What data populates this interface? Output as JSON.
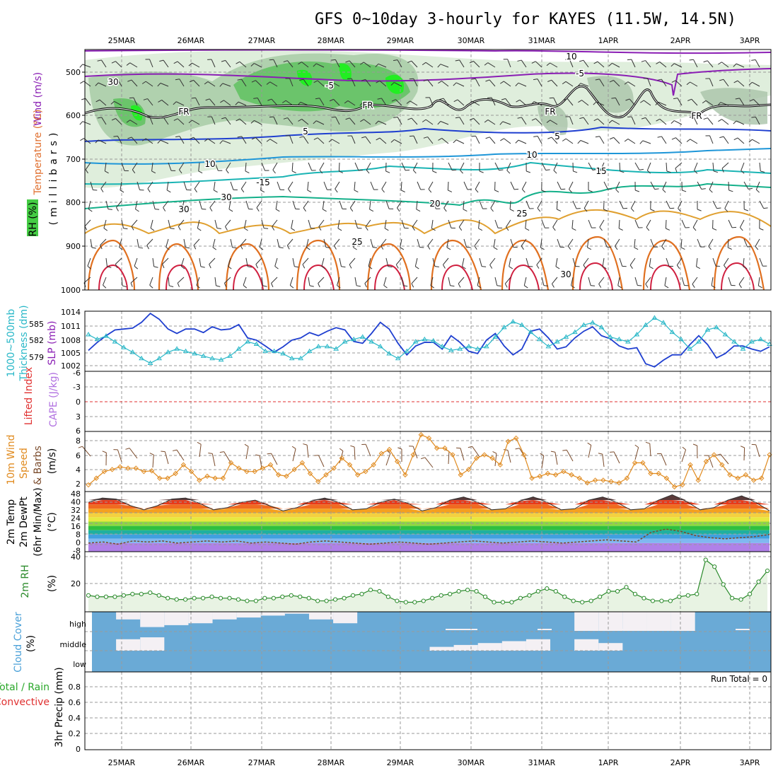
{
  "title": "GFS 0~10day 3-hourly for KAYES (11.5W, 14.5N)",
  "dates": [
    "25MAR",
    "26MAR",
    "27MAR",
    "28MAR",
    "29MAR",
    "30MAR",
    "31MAR",
    "1APR",
    "2APR",
    "3APR"
  ],
  "colors": {
    "sfc_temp": "#1f3fd0",
    "thickness": "#2ab8c8",
    "wind_speed": "#e08a1e",
    "barbs": "#7a4a2a",
    "rh": "#2a8a2a",
    "cloud": "#6aaad6",
    "cloud_clear": "#f4f0f4",
    "lifted": "#e03030"
  },
  "panels": {
    "upper": {
      "ylabel_a": "Wind (m/s)",
      "ylabel_b": "Temperature (°C)",
      "ylabel_c": "(millibars)",
      "rh_label": "RH (%)",
      "pressure_levels": [
        "500",
        "600",
        "700",
        "800",
        "900",
        "1000"
      ],
      "contour_labels": [
        "10",
        "-5",
        "-5",
        "FR",
        "FR",
        "FR",
        "FR",
        "5",
        "5",
        "10",
        "10",
        "15",
        "-15",
        "20",
        "25",
        "25",
        "30",
        "30",
        "30",
        "30"
      ]
    },
    "slp": {
      "ylabel_a": "1000~500mb",
      "ylabel_b": "Thickness (dm)",
      "ylabel_c": "SLP (mb)",
      "left_ticks": [
        "585",
        "582",
        "579"
      ],
      "right_ticks": [
        "1014",
        "1011",
        "1008",
        "1005",
        "1002"
      ]
    },
    "cape": {
      "ylabel_a": "Lifted Index",
      "ylabel_b": "CAPE (J/kg)",
      "ticks": [
        "-6",
        "-3",
        "0",
        "3",
        "6"
      ]
    },
    "wind10": {
      "ylabel_a": "10m Wind",
      "ylabel_b": "Speed",
      "ylabel_c": "& Barbs",
      "ylabel_d": "(m/s)",
      "ticks": [
        "8",
        "6",
        "4",
        "2"
      ]
    },
    "temp2m": {
      "ylabel_a": "2m Temp",
      "ylabel_b": "2m DewPt",
      "ylabel_c": "(6hr Min/Max)",
      "ylabel_d": "(°C)",
      "ticks": [
        "48",
        "40",
        "32",
        "24",
        "16",
        "8",
        "0",
        "-8"
      ]
    },
    "rh2m": {
      "ylabel_a": "2m RH",
      "ylabel_b": "(%)",
      "ticks": [
        "40",
        "20"
      ]
    },
    "cloud": {
      "ylabel_a": "Cloud Cover",
      "ylabel_b": "(%)",
      "levels": [
        "high",
        "middle",
        "low"
      ]
    },
    "precip": {
      "ylabel_a": "Total / Rain",
      "ylabel_b": "Convective",
      "ylabel_c": "3hr Precip (mm)",
      "ticks": [
        "0.8",
        "0.6",
        "0.4",
        "0.2",
        "0"
      ],
      "run_total": "Run Total = 0"
    }
  },
  "chart_data": [
    {
      "type": "line",
      "title": "1000~500mb Thickness (dm) / SLP (mb)",
      "series": [
        {
          "name": "SLP (mb)",
          "ylim": [
            1000.5,
            1014
          ],
          "values": [
            1005.2,
            1007.0,
            1008.5,
            1009.8,
            1010.0,
            1010.2,
            1011.5,
            1013.5,
            1012.2,
            1010.0,
            1009.0,
            1010.0,
            1010.0,
            1009.2,
            1010.5,
            1009.8,
            1010.0,
            1011.0,
            1008.0,
            1007.5,
            1006.2,
            1004.8,
            1006.0,
            1007.5,
            1008.0,
            1009.2,
            1008.5,
            1009.5,
            1010.3,
            1009.8,
            1007.2,
            1006.8,
            1009.0,
            1011.5,
            1010.0,
            1006.8,
            1004.2,
            1006.2,
            1007.0,
            1007.0,
            1005.5,
            1008.5,
            1007.0,
            1005.0,
            1004.5,
            1007.5,
            1009.0,
            1006.2,
            1004.2,
            1005.5,
            1009.5,
            1010.0,
            1008.0,
            1005.5,
            1006.0,
            1008.0,
            1009.5,
            1010.5,
            1008.5,
            1007.8,
            1006.2,
            1005.5,
            1005.8,
            1002.2,
            1001.5,
            1003.0,
            1004.2,
            1004.2,
            1006.5,
            1008.5,
            1006.5,
            1003.5,
            1004.5,
            1006.2,
            1006.2,
            1005.5,
            1005.0,
            1006.0
          ]
        },
        {
          "name": "Thickness (dm)",
          "ylim": [
            575.8,
            588.4
          ],
          "values": [
            583.5,
            582.5,
            583.2,
            582.0,
            580.8,
            579.8,
            578.5,
            577.5,
            578.5,
            579.8,
            580.5,
            580.0,
            579.5,
            579.0,
            578.5,
            578.2,
            579.0,
            580.5,
            582.0,
            581.5,
            580.0,
            580.0,
            579.5,
            578.5,
            578.5,
            580.0,
            581.0,
            581.0,
            580.5,
            582.0,
            582.5,
            583.0,
            582.0,
            581.0,
            579.5,
            578.5,
            580.0,
            582.0,
            582.5,
            582.2,
            581.0,
            580.2,
            580.5,
            581.0,
            580.5,
            581.0,
            583.0,
            585.0,
            586.2,
            585.5,
            584.0,
            582.5,
            581.0,
            582.0,
            583.0,
            584.0,
            585.5,
            586.0,
            585.0,
            583.0,
            582.5,
            582.0,
            583.5,
            585.5,
            587.0,
            586.0,
            584.0,
            582.5,
            580.5,
            582.0,
            584.5,
            585.0,
            583.5,
            582.0,
            580.5,
            582.0,
            582.5,
            581.5
          ]
        }
      ]
    },
    {
      "type": "line",
      "title": "10m Wind Speed (m/s)",
      "ylim": [
        0.5,
        9.5
      ],
      "series": [
        {
          "name": "Speed",
          "values": [
            1.5,
            2.5,
            3.5,
            3.8,
            4.2,
            4.0,
            4.0,
            3.5,
            3.6,
            2.5,
            2.5,
            3.2,
            4.5,
            3.5,
            2.2,
            2.8,
            2.5,
            2.5,
            4.8,
            4.0,
            3.5,
            3.5,
            4.0,
            4.5,
            3.0,
            2.8,
            3.8,
            4.8,
            3.2,
            2.0,
            3.0,
            4.0,
            5.5,
            4.5,
            3.0,
            3.5,
            4.5,
            6.2,
            6.8,
            5.0,
            3.0,
            6.0,
            9.0,
            8.5,
            7.0,
            7.0,
            6.0,
            3.0,
            3.8,
            5.5,
            6.0,
            5.5,
            4.5,
            8.0,
            8.5,
            6.0,
            2.5,
            2.8,
            3.2,
            3.0,
            3.5,
            3.0,
            2.5,
            1.8,
            2.2,
            2.2,
            2.0,
            1.8,
            2.5,
            4.8,
            4.8,
            3.2,
            3.2,
            2.5,
            1.2,
            1.5,
            4.5,
            2.2,
            5.0,
            6.0,
            4.5,
            3.0,
            2.5,
            3.0,
            2.2,
            2.5,
            6.0
          ]
        }
      ]
    },
    {
      "type": "area",
      "title": "2m Temp / DewPt (°C)",
      "ylim": [
        -8,
        48
      ],
      "series": [
        {
          "name": "2m Temp",
          "values": [
            38,
            42,
            41,
            35,
            31,
            35,
            41,
            42,
            37,
            31,
            33,
            38,
            40,
            35,
            30,
            33,
            39,
            42,
            38,
            31,
            32,
            38,
            41,
            37,
            30,
            33,
            40,
            43,
            38,
            31,
            32,
            39,
            43,
            38,
            31,
            32,
            40,
            43,
            38,
            31,
            32,
            40,
            45,
            39,
            31,
            33,
            40,
            44,
            38,
            30
          ]
        },
        {
          "name": "2m DewPt",
          "values": [
            0,
            1,
            -1,
            2,
            1,
            2,
            0,
            1,
            2,
            1,
            2,
            0,
            1,
            0,
            -1,
            1,
            2,
            1,
            0,
            -1,
            0,
            1,
            0,
            -1,
            0,
            1,
            2,
            1,
            0,
            1,
            2,
            1,
            0,
            1,
            2,
            3,
            2,
            1,
            10,
            13,
            11,
            7,
            5,
            4,
            5,
            6,
            8
          ]
        }
      ]
    },
    {
      "type": "area",
      "title": "2m RH (%)",
      "ylim": [
        0,
        40
      ],
      "series": [
        {
          "name": "2m RH",
          "values": [
            12,
            11,
            11,
            11,
            12,
            13,
            13,
            14,
            12,
            10,
            9,
            9,
            10,
            10,
            11,
            10,
            10,
            9,
            8,
            8,
            10,
            10,
            11,
            12,
            11,
            10,
            8,
            8,
            9,
            10,
            12,
            13,
            16,
            15,
            11,
            8,
            7,
            7,
            8,
            10,
            12,
            13,
            15,
            16,
            15,
            11,
            7,
            7,
            7,
            10,
            12,
            15,
            17,
            15,
            11,
            8,
            7,
            8,
            11,
            15,
            15,
            18,
            13,
            10,
            8,
            8,
            8,
            11,
            12,
            13,
            38,
            33,
            20,
            10,
            9,
            13,
            22,
            30
          ]
        }
      ]
    },
    {
      "type": "area",
      "title": "Cloud Cover (%)",
      "series": [
        {
          "name": "high",
          "values": [
            0,
            40,
            80,
            70,
            60,
            40,
            30,
            20,
            10,
            40,
            60,
            0,
            0,
            0,
            0,
            0,
            0,
            0,
            0,
            0,
            100,
            100,
            100,
            100,
            100,
            0,
            0,
            0
          ]
        },
        {
          "name": "middle",
          "values": [
            0,
            60,
            70,
            0,
            0,
            0,
            0,
            0,
            0,
            0,
            0,
            0,
            0,
            0,
            20,
            30,
            40,
            50,
            60,
            0,
            60,
            40,
            0,
            0,
            0,
            0,
            0,
            0
          ]
        }
      ]
    },
    {
      "type": "bar",
      "title": "3hr Precip (mm)",
      "ylim": [
        0,
        1
      ],
      "values": [
        0,
        0,
        0,
        0,
        0,
        0,
        0,
        0,
        0,
        0
      ]
    }
  ]
}
